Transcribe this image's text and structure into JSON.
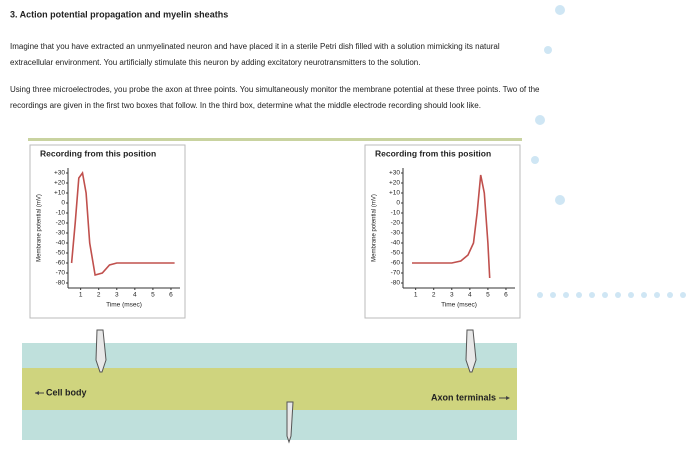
{
  "header": {
    "title": "3. Action potential propagation and myelin sheaths"
  },
  "paragraphs": [
    [
      "Imagine that you have extracted an unmyelinated neuron and have placed it in a sterile Petri dish filled with a solution mimicking its natural",
      "extracellular environment. You artificially stimulate this neuron by adding excitatory neurotransmitters to the solution."
    ],
    [
      "Using three microelectrodes, you probe the axon at three points. You simultaneously monitor the membrane potential at these three points. Two of the",
      "recordings are given in the first two boxes that follow. In the third box, determine what the middle electrode recording should look like."
    ]
  ],
  "labels": {
    "left": "Cell body",
    "right": "Axon terminals"
  },
  "chart_data": [
    {
      "type": "line",
      "title": "Recording from this position",
      "y_label": "Membrane potential (mV)",
      "x_label": "Time (msec)",
      "ylim": [
        -85,
        35
      ],
      "xlim": [
        0.3,
        6.5
      ],
      "yticks": [
        {
          "value": 30,
          "label": "+30"
        },
        {
          "value": 20,
          "label": "+20"
        },
        {
          "value": 10,
          "label": "+10"
        },
        0,
        -10,
        -20,
        -30,
        -40,
        -50,
        -60,
        -70,
        -80
      ],
      "xticks": [
        1,
        2,
        3,
        4,
        5,
        6
      ],
      "series": [
        {
          "color": "#c0504d",
          "x": [
            0.5,
            0.7,
            0.9,
            1.1,
            1.3,
            1.5,
            1.8,
            2.2,
            2.6,
            3,
            4,
            5,
            6.2
          ],
          "values": [
            -60,
            -20,
            25,
            30,
            10,
            -40,
            -72,
            -70,
            -62,
            -60,
            -60,
            -60,
            -60
          ]
        }
      ]
    },
    {
      "type": "line",
      "title": "Recording from this position",
      "y_label": "Membrane potential (mV)",
      "x_label": "Time (msec)",
      "ylim": [
        -85,
        35
      ],
      "xlim": [
        0.3,
        6.5
      ],
      "yticks": [
        {
          "value": 30,
          "label": "+30"
        },
        {
          "value": 20,
          "label": "+20"
        },
        {
          "value": 10,
          "label": "+10"
        },
        0,
        -10,
        -20,
        -30,
        -40,
        -50,
        -60,
        -70,
        -80
      ],
      "xticks": [
        1,
        2,
        3,
        4,
        5,
        6
      ],
      "series": [
        {
          "color": "#c0504d",
          "x": [
            0.8,
            2,
            3,
            3.5,
            3.9,
            4.2,
            4.4,
            4.6,
            4.8,
            5.0,
            5.1
          ],
          "values": [
            -60,
            -60,
            -60,
            -58,
            -52,
            -40,
            -10,
            28,
            10,
            -40,
            -75
          ]
        }
      ]
    }
  ]
}
